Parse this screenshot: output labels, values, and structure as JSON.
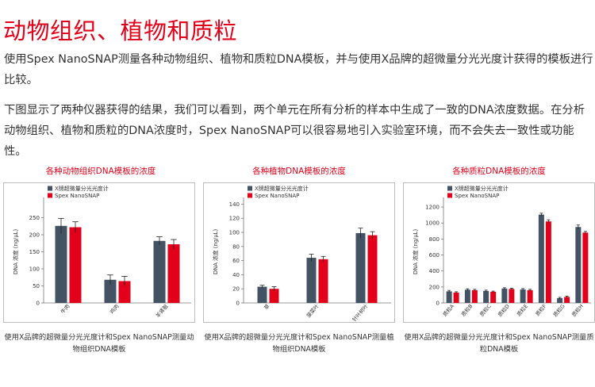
{
  "page": {
    "title": "动物组织、植物和质粒",
    "intro": "使用Spex  NanoSNAP测量各种动物组织、植物和质粒DNA模板，并与使用X品牌的超微量分光光度计获得的模板进行比较。",
    "result": "下图显示了两种仪器获得的结果，我们可以看到，两个单元在所有分析的样本中生成了一致的DNA浓度数据。在分析动物组织、植物和质粒的DNA浓度时，Spex NanoSNAP可以很容易地引入实验室环境，而不会失去一致性或功能性。"
  },
  "colors": {
    "brand_red": "#e2001a",
    "series_dark": "#435363",
    "series_red": "#e2001a",
    "error_bar": "#222222"
  },
  "chart_data": [
    {
      "type": "bar",
      "title": "各种动物组织DNA模板的浓度",
      "ylabel": "DNA 浓度 (ng/μL)",
      "ylim": [
        0,
        300
      ],
      "yticks": [
        0,
        50,
        100,
        150,
        200,
        250
      ],
      "categories": [
        "牛肉",
        "鸡肉",
        "羊肾脏"
      ],
      "series": [
        {
          "name": "X牌超微量分光光度计",
          "values": [
            226,
            68,
            182
          ],
          "errors": [
            22,
            14,
            12
          ]
        },
        {
          "name": "Spex NanoSNAP",
          "values": [
            222,
            64,
            172
          ],
          "errors": [
            16,
            14,
            14
          ]
        }
      ],
      "legend": "top-left",
      "caption": "使用X品牌的超微量分光光度计和Spex NanoSNAP测量动物组织DNA模板"
    },
    {
      "type": "bar",
      "title": "各种植物DNA模板的浓度",
      "ylabel": "DNA 浓度 (ng/μL)",
      "ylim": [
        0,
        145
      ],
      "yticks": [
        0,
        20,
        40,
        60,
        80,
        100,
        120,
        140
      ],
      "categories": [
        "草",
        "菠菜叶",
        "针叶树叶"
      ],
      "series": [
        {
          "name": "X牌超微量分光光度计",
          "values": [
            23,
            64,
            99
          ],
          "errors": [
            2,
            5,
            7
          ]
        },
        {
          "name": "Spex NanoSNAP",
          "values": [
            20,
            62,
            96
          ],
          "errors": [
            3,
            4,
            5
          ]
        }
      ],
      "legend": "top-left",
      "caption": "使用X品牌的超微量分光光度计和Spex NanoSNAP测量植物组织DNA模板"
    },
    {
      "type": "bar",
      "title": "各种质粒DNA模板的浓度",
      "ylabel": "DNA 浓度 (ng/μL)",
      "ylim": [
        0,
        1280
      ],
      "yticks": [
        0,
        200,
        400,
        600,
        800,
        1000,
        1200
      ],
      "categories": [
        "质粒A",
        "质粒B",
        "质粒C",
        "质粒D",
        "质粒E",
        "质粒F",
        "质粒G",
        "质粒H"
      ],
      "series": [
        {
          "name": "X牌超微量分光光度计",
          "values": [
            145,
            165,
            150,
            180,
            168,
            1105,
            60,
            950
          ],
          "errors": [
            12,
            12,
            10,
            10,
            12,
            18,
            10,
            25
          ]
        },
        {
          "name": "Spex NanoSNAP",
          "values": [
            130,
            160,
            140,
            175,
            160,
            1020,
            75,
            880
          ],
          "errors": [
            10,
            10,
            8,
            10,
            10,
            20,
            10,
            15
          ]
        }
      ],
      "legend": "top-left",
      "caption": "使用X品牌的超微量分光光度计和Spex NanoSNAP测量质粒DNA模板"
    }
  ]
}
